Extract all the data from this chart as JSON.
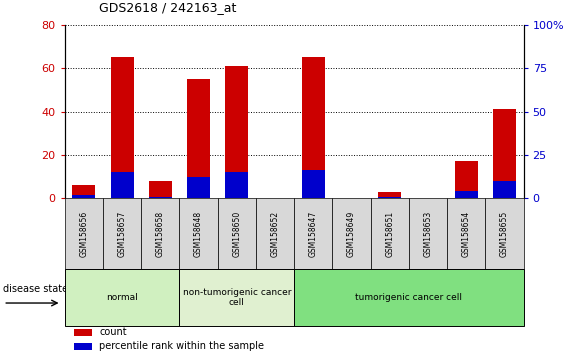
{
  "title": "GDS2618 / 242163_at",
  "samples": [
    "GSM158656",
    "GSM158657",
    "GSM158658",
    "GSM158648",
    "GSM158650",
    "GSM158652",
    "GSM158647",
    "GSM158649",
    "GSM158651",
    "GSM158653",
    "GSM158654",
    "GSM158655"
  ],
  "count_values": [
    6,
    65,
    8,
    55,
    61,
    0,
    65,
    0,
    3,
    0,
    17,
    41
  ],
  "percentile_values": [
    2,
    15,
    1,
    12,
    15,
    0,
    16,
    0,
    1,
    0,
    4,
    10
  ],
  "groups": [
    {
      "label": "normal",
      "start": 0,
      "end": 3,
      "color": "#d0f0c0"
    },
    {
      "label": "non-tumorigenic cancer\ncell",
      "start": 3,
      "end": 6,
      "color": "#e0f0d0"
    },
    {
      "label": "tumorigenic cancer cell",
      "start": 6,
      "end": 12,
      "color": "#80e080"
    }
  ],
  "ylim_left": [
    0,
    80
  ],
  "ylim_right": [
    0,
    100
  ],
  "yticks_left": [
    0,
    20,
    40,
    60,
    80
  ],
  "ytick_labels_left": [
    "0",
    "20",
    "40",
    "60",
    "80"
  ],
  "yticks_right": [
    0,
    25,
    50,
    75,
    100
  ],
  "ytick_labels_right": [
    "0",
    "25",
    "50",
    "75",
    "100%"
  ],
  "bar_color_red": "#cc0000",
  "bar_color_blue": "#0000cc",
  "bar_width": 0.6,
  "background_color": "#ffffff",
  "plot_bg_color": "#ffffff",
  "sample_box_color": "#d8d8d8",
  "legend_count_label": "count",
  "legend_percentile_label": "percentile rank within the sample",
  "disease_state_label": "disease state"
}
